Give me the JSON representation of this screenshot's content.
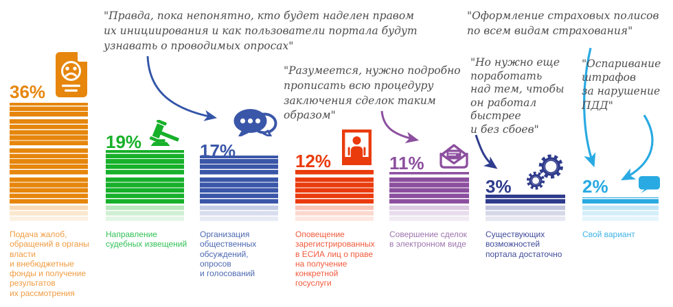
{
  "chart_data": {
    "type": "bar",
    "unit": "%",
    "title": "",
    "categories": [
      "Подача жалоб, обращений в органы власти и внебюджетные фонды и получение результатов их рассмотрения",
      "Направление судебных извещений",
      "Организация общественных обсуждений, опросов и голосований",
      "Оповещение зарегистрированных в ЕСИА лиц о праве на получение конкретной госуслуги",
      "Совершение сделок в электронном виде",
      "Существующих возможностей портала достаточно",
      "Свой вариант"
    ],
    "values": [
      36,
      19,
      17,
      12,
      11,
      3,
      2
    ],
    "bar_colors": [
      "#E6860D",
      "#17B02A",
      "#3A56A8",
      "#EA3B0D",
      "#8C4F9E",
      "#2F3B8C",
      "#29AAE2"
    ],
    "ylim": [
      0,
      40
    ],
    "grid": false,
    "legend": false
  },
  "bars": [
    {
      "value": 36,
      "value_label": "36%",
      "color": "#E6860D",
      "caption_color": "#F09B41",
      "icon": "sad-document",
      "caption": "Подача жалоб,\nобращений в органы\nвласти\nи внебюджетные\nфонды и получение\nрезультатов\nих рассмотрения"
    },
    {
      "value": 19,
      "value_label": "19%",
      "color": "#17B02A",
      "caption_color": "#31C155",
      "icon": "gavel",
      "caption": "Направление\nсудебных извещений"
    },
    {
      "value": 17,
      "value_label": "17%",
      "color": "#3A56A8",
      "caption_color": "#4C68B0",
      "icon": "chat-bubbles",
      "caption": "Организация\nобщественных\nобсуждений,\nопросов\nи голосований"
    },
    {
      "value": 12,
      "value_label": "12%",
      "color": "#EA3B0D",
      "caption_color": "#F15A3C",
      "icon": "person-frame",
      "caption": "Оповещение\nзарегистрированных\nв ЕСИА лиц о праве\nна получение\nконкретной\nгосуслуги"
    },
    {
      "value": 11,
      "value_label": "11%",
      "color": "#8C4F9E",
      "caption_color": "#9D74AE",
      "icon": "open-envelope",
      "caption": "Совершение сделок\nв электронном виде"
    },
    {
      "value": 3,
      "value_label": "3%",
      "color": "#2F3B8C",
      "caption_color": "#3F4A99",
      "icon": "gears",
      "caption": "Существующих\nвозможностей\nпортала достаточно"
    },
    {
      "value": 2,
      "value_label": "2%",
      "color": "#29AAE2",
      "caption_color": "#3BB2E6",
      "icon": "speech-bubble",
      "caption": "Свой вариант"
    }
  ],
  "quotes": [
    {
      "text": "\"Правда, пока непонятно, кто будет наделен правом\nих инициирования и как пользователи портала будут\nузнавать о проводимых опросах\"",
      "color": "#4D4D4F"
    },
    {
      "text": "\"Разумеется, нужно подробно\nпрописать всю процедуру\nзаключения сделок таким\nобразом\"",
      "color": "#4D4D4F"
    },
    {
      "text": "\"Но нужно еще\nпоработать\nнад тем, чтобы\nон работал\nбыстрее\nи без сбоев\"",
      "color": "#4D4D4F"
    },
    {
      "text": "\"Оформление страховых полисов\nпо всем видам страхования\"",
      "color": "#4D4D4F"
    },
    {
      "text": "\"Оспаривание\nштрафов\nза нарушение\nПДД\"",
      "color": "#4D4D4F"
    }
  ],
  "arrows": [
    {
      "name": "quote1-to-discussions-bar",
      "color": "#3355A8"
    },
    {
      "name": "quote2-to-deals-bar",
      "color": "#8C4F9E"
    },
    {
      "name": "quote3-to-capabilities-bar",
      "color": "#2F3B8C"
    },
    {
      "name": "quote4-to-own-option-bar",
      "color": "#29AAE2"
    },
    {
      "name": "quote5-to-own-option-bar",
      "color": "#29AAE2"
    }
  ]
}
